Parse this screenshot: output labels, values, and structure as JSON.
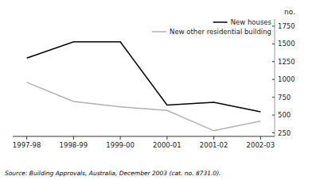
{
  "chart_data": {
    "type": "line",
    "y_label": "no.",
    "categories": [
      "1997-98",
      "1998-99",
      "1999-00",
      "2000-01",
      "2001-02",
      "2002-03"
    ],
    "series": [
      {
        "name": "New houses",
        "color": "#000000",
        "values": [
          1300,
          1530,
          1530,
          640,
          680,
          545
        ]
      },
      {
        "name": "New other residential building",
        "color": "#b0b0b0",
        "values": [
          960,
          690,
          615,
          565,
          280,
          415
        ]
      }
    ],
    "ylim": [
      200,
      1850
    ],
    "yticks": [
      250,
      500,
      750,
      1000,
      1250,
      1500,
      1750
    ],
    "grid": false,
    "legend": "upper right",
    "annotations": [
      "Source:  Building Approvals, Australia, December 2003 (cat. no. 8731.0)."
    ]
  }
}
